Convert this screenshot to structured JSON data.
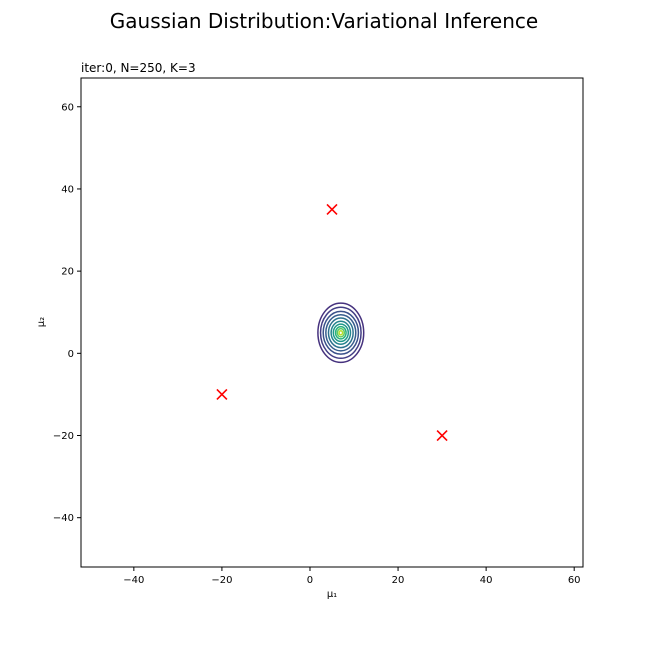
{
  "figure": {
    "suptitle": "Gaussian Distribution:Variational Inference"
  },
  "chart_data": {
    "type": "contour",
    "title": "iter:0, N=250, K=3",
    "xlabel": "μ₁",
    "ylabel": "μ₂",
    "xlim": [
      -52,
      62
    ],
    "ylim": [
      -52,
      67
    ],
    "xticks": [
      -40,
      -20,
      0,
      20,
      40,
      60
    ],
    "yticks": [
      -40,
      -20,
      0,
      20,
      40,
      60
    ],
    "grid": false,
    "true_means": {
      "marker": "x",
      "color": "#ff0000",
      "points": [
        {
          "x": 5,
          "y": 35
        },
        {
          "x": -20,
          "y": -10
        },
        {
          "x": 30,
          "y": -20
        }
      ]
    },
    "contours": {
      "center": {
        "x": 7,
        "y": 5
      },
      "colormap": "viridis",
      "levels": [
        {
          "rx": 5.2,
          "ry": 7.2,
          "color": "#46327e"
        },
        {
          "rx": 4.6,
          "ry": 6.2,
          "color": "#433e85"
        },
        {
          "rx": 4.0,
          "ry": 5.2,
          "color": "#3b528b"
        },
        {
          "rx": 3.4,
          "ry": 4.4,
          "color": "#365d8d"
        },
        {
          "rx": 2.8,
          "ry": 3.6,
          "color": "#2c728e"
        },
        {
          "rx": 2.2,
          "ry": 2.8,
          "color": "#25858e"
        },
        {
          "rx": 1.7,
          "ry": 2.1,
          "color": "#1f998a"
        },
        {
          "rx": 1.2,
          "ry": 1.5,
          "color": "#2ab07f"
        },
        {
          "rx": 0.8,
          "ry": 1.0,
          "color": "#5ec962"
        },
        {
          "rx": 0.4,
          "ry": 0.5,
          "color": "#b5de2b"
        }
      ]
    }
  }
}
